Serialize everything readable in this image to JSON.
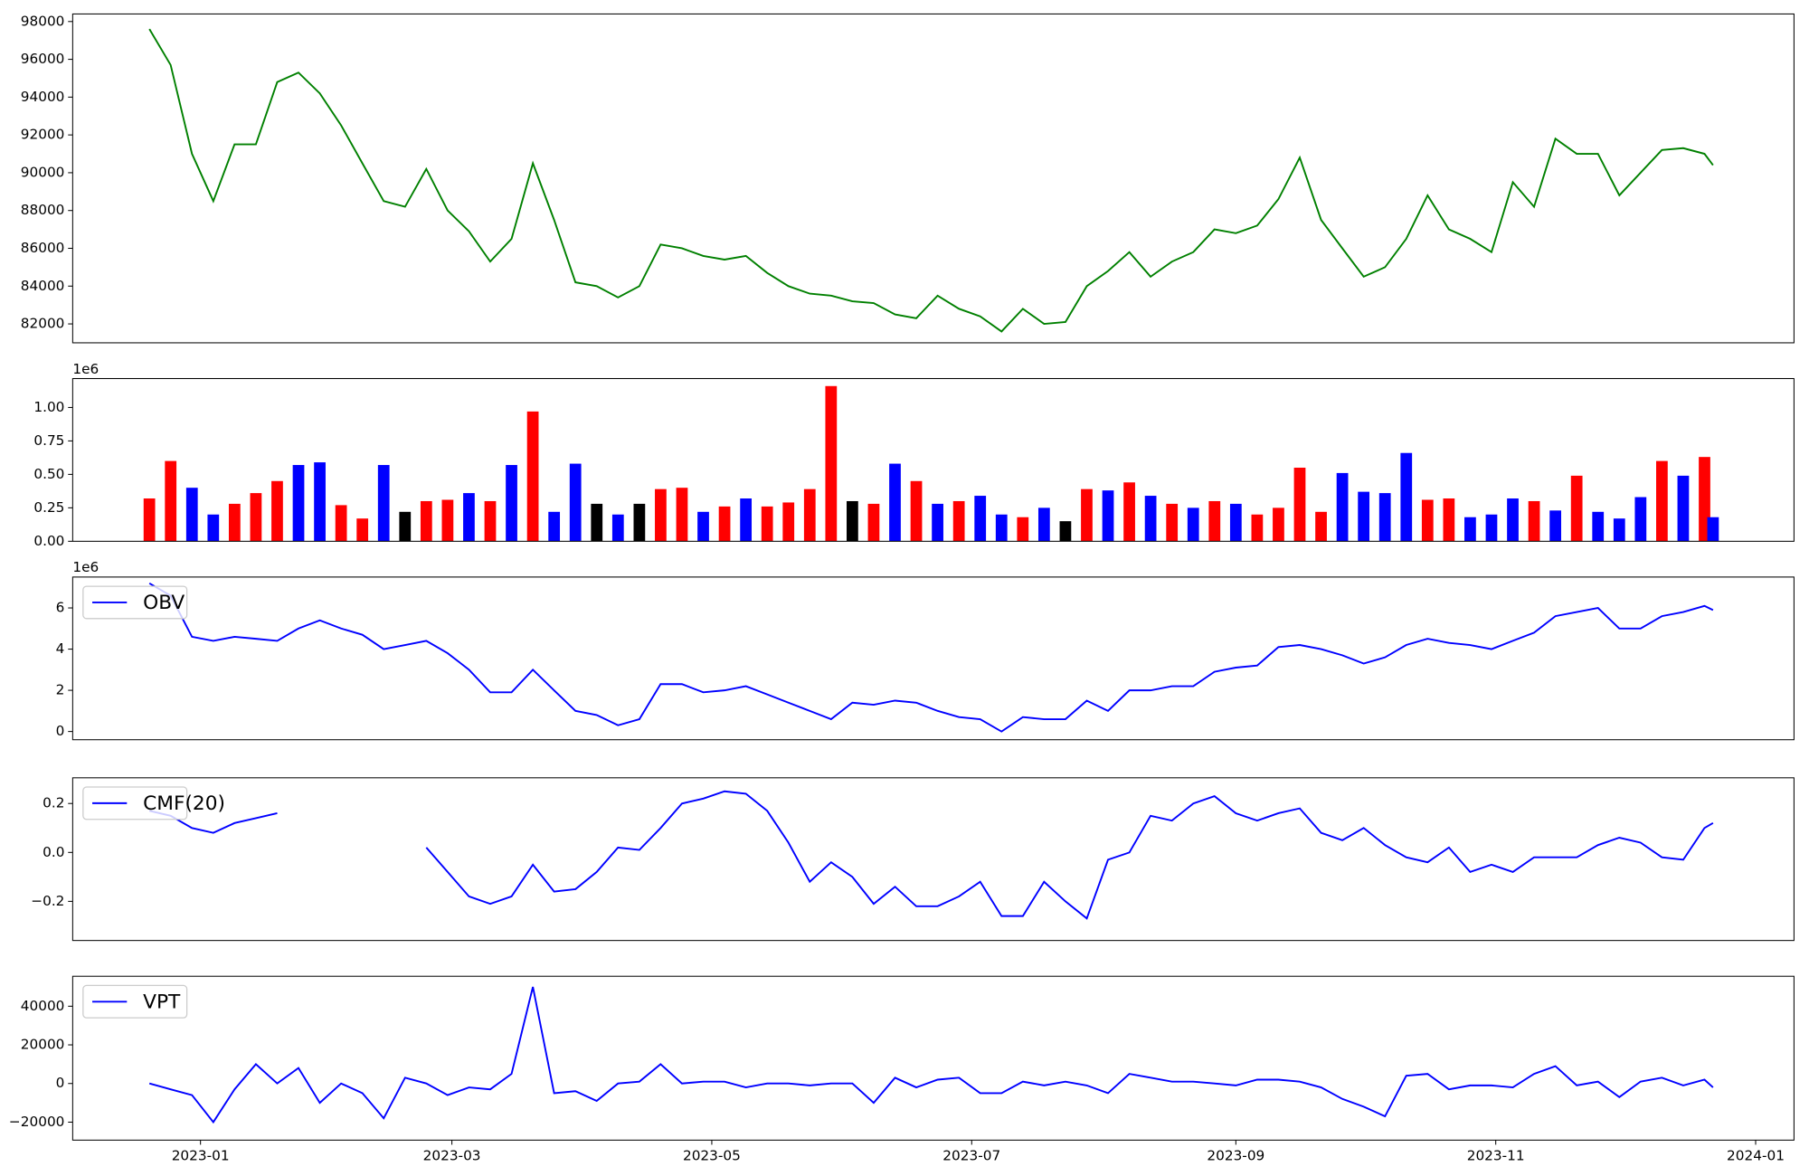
{
  "chart_data": [
    {
      "type": "line",
      "xlim": [
        1,
        405
      ],
      "ylim": [
        81000,
        98400
      ],
      "yticks": [
        82000,
        84000,
        86000,
        88000,
        90000,
        92000,
        94000,
        96000,
        98000
      ],
      "x": [
        19,
        24,
        29,
        34,
        39,
        44,
        49,
        54,
        59,
        64,
        69,
        74,
        79,
        84,
        89,
        94,
        99,
        104,
        109,
        114,
        119,
        124,
        129,
        134,
        139,
        144,
        149,
        154,
        159,
        164,
        169,
        174,
        179,
        184,
        189,
        194,
        199,
        204,
        209,
        214,
        219,
        224,
        229,
        234,
        239,
        244,
        249,
        254,
        259,
        264,
        269,
        274,
        279,
        284,
        289,
        294,
        299,
        304,
        309,
        314,
        319,
        324,
        329,
        334,
        339,
        344,
        349,
        354,
        359,
        364,
        369,
        374,
        379,
        384,
        386
      ],
      "series": [
        {
          "color": "#008000",
          "values": [
            97600,
            95700,
            91000,
            88500,
            91500,
            91500,
            94800,
            95300,
            94200,
            92500,
            90500,
            88500,
            88200,
            90200,
            88000,
            86900,
            85300,
            86500,
            90500,
            87500,
            84200,
            84000,
            83400,
            84000,
            86200,
            86000,
            85600,
            85400,
            85600,
            84700,
            84000,
            83600,
            83500,
            83200,
            83100,
            82500,
            82300,
            83500,
            82800,
            82400,
            81600,
            82800,
            82000,
            82100,
            84000,
            84800,
            85800,
            84500,
            85300,
            85800,
            87000,
            86800,
            87200,
            88600,
            90800,
            87500,
            86000,
            84500,
            85000,
            86500,
            88800,
            87000,
            86500,
            85800,
            89500,
            88200,
            91800,
            91000,
            91000,
            88800,
            90000,
            91200,
            91300,
            91000,
            90400
          ]
        }
      ]
    },
    {
      "type": "bar",
      "offset_label": "1e6",
      "xlim": [
        1,
        405
      ],
      "ylim": [
        0,
        1.216
      ],
      "yticks": [
        {
          "value": 0,
          "label": "0.00"
        },
        {
          "value": 0.25,
          "label": "0.25"
        },
        {
          "value": 0.5,
          "label": "0.50"
        },
        {
          "value": 0.75,
          "label": "0.75"
        },
        {
          "value": 1,
          "label": "1.00"
        }
      ],
      "x": [
        19,
        24,
        29,
        34,
        39,
        44,
        49,
        54,
        59,
        64,
        69,
        74,
        79,
        84,
        89,
        94,
        99,
        104,
        109,
        114,
        119,
        124,
        129,
        134,
        139,
        144,
        149,
        154,
        159,
        164,
        169,
        174,
        179,
        184,
        189,
        194,
        199,
        204,
        209,
        214,
        219,
        224,
        229,
        234,
        239,
        244,
        249,
        254,
        259,
        264,
        269,
        274,
        279,
        284,
        289,
        294,
        299,
        304,
        309,
        314,
        319,
        324,
        329,
        334,
        339,
        344,
        349,
        354,
        359,
        364,
        369,
        374,
        379,
        384,
        386
      ],
      "values": [
        0.32,
        0.6,
        0.4,
        0.2,
        0.28,
        0.36,
        0.45,
        0.57,
        0.59,
        0.27,
        0.17,
        0.57,
        0.22,
        0.3,
        0.31,
        0.36,
        0.3,
        0.57,
        0.97,
        0.22,
        0.58,
        0.28,
        0.2,
        0.28,
        0.39,
        0.4,
        0.22,
        0.26,
        0.32,
        0.26,
        0.29,
        0.39,
        1.16,
        0.3,
        0.28,
        0.58,
        0.45,
        0.28,
        0.3,
        0.34,
        0.2,
        0.18,
        0.25,
        0.15,
        0.39,
        0.38,
        0.44,
        0.34,
        0.28,
        0.25,
        0.3,
        0.28,
        0.2,
        0.25,
        0.55,
        0.22,
        0.51,
        0.37,
        0.36,
        0.66,
        0.31,
        0.32,
        0.18,
        0.2,
        0.32,
        0.3,
        0.23,
        0.49,
        0.22,
        0.17,
        0.33,
        0.6,
        0.49,
        0.63,
        0.18
      ],
      "colors": [
        "red",
        "red",
        "blue",
        "blue",
        "red",
        "red",
        "red",
        "blue",
        "blue",
        "red",
        "red",
        "blue",
        "black",
        "red",
        "red",
        "blue",
        "red",
        "blue",
        "red",
        "blue",
        "blue",
        "black",
        "blue",
        "black",
        "red",
        "red",
        "blue",
        "red",
        "blue",
        "red",
        "red",
        "red",
        "red",
        "black",
        "red",
        "blue",
        "red",
        "blue",
        "red",
        "blue",
        "blue",
        "red",
        "blue",
        "black",
        "red",
        "blue",
        "red",
        "blue",
        "red",
        "blue",
        "red",
        "blue",
        "red",
        "red",
        "red",
        "red",
        "blue",
        "blue",
        "blue",
        "blue",
        "red",
        "red",
        "blue",
        "blue",
        "blue",
        "red",
        "blue",
        "red",
        "blue",
        "blue",
        "blue",
        "red",
        "blue",
        "red",
        "blue"
      ]
    },
    {
      "type": "line",
      "offset_label": "1e6",
      "xlim": [
        1,
        405
      ],
      "ylim": [
        -0.4,
        7.5
      ],
      "yticks": [
        0,
        2,
        4,
        6
      ],
      "x": [
        19,
        24,
        29,
        34,
        39,
        44,
        49,
        54,
        59,
        64,
        69,
        74,
        79,
        84,
        89,
        94,
        99,
        104,
        109,
        114,
        119,
        124,
        129,
        134,
        139,
        144,
        149,
        154,
        159,
        164,
        169,
        174,
        179,
        184,
        189,
        194,
        199,
        204,
        209,
        214,
        219,
        224,
        229,
        234,
        239,
        244,
        249,
        254,
        259,
        264,
        269,
        274,
        279,
        284,
        289,
        294,
        299,
        304,
        309,
        314,
        319,
        324,
        329,
        334,
        339,
        344,
        349,
        354,
        359,
        364,
        369,
        374,
        379,
        384,
        386
      ],
      "series": [
        {
          "name": "OBV",
          "color": "#0000ff",
          "values": [
            7.2,
            6.6,
            4.6,
            4.4,
            4.6,
            4.5,
            4.4,
            5.0,
            5.4,
            5.0,
            4.7,
            4.0,
            4.2,
            4.4,
            3.8,
            3.0,
            1.9,
            1.9,
            3.0,
            2.0,
            1.0,
            0.8,
            0.3,
            0.6,
            2.3,
            2.3,
            1.9,
            2.0,
            2.2,
            1.8,
            1.4,
            1.0,
            0.6,
            1.4,
            1.3,
            1.5,
            1.4,
            1.0,
            0.7,
            0.6,
            0.0,
            0.7,
            0.6,
            0.6,
            1.5,
            1.0,
            2.0,
            2.0,
            2.2,
            2.2,
            2.9,
            3.1,
            3.2,
            4.1,
            4.2,
            4.0,
            3.7,
            3.3,
            3.6,
            4.2,
            4.5,
            4.3,
            4.2,
            4.0,
            4.4,
            4.8,
            5.6,
            5.8,
            6.0,
            5.0,
            5.0,
            5.6,
            5.8,
            6.1,
            5.9
          ]
        }
      ]
    },
    {
      "type": "line",
      "xlim": [
        1,
        405
      ],
      "ylim": [
        -0.36,
        0.305
      ],
      "yticks": [
        {
          "value": -0.2,
          "label": "−0.2"
        },
        {
          "value": 0,
          "label": "0.0"
        },
        {
          "value": 0.2,
          "label": "0.2"
        }
      ],
      "x": [
        19,
        24,
        29,
        34,
        39,
        44,
        49,
        54,
        59,
        64,
        69,
        74,
        79,
        84,
        89,
        94,
        99,
        104,
        109,
        114,
        119,
        124,
        129,
        134,
        139,
        144,
        149,
        154,
        159,
        164,
        169,
        174,
        179,
        184,
        189,
        194,
        199,
        204,
        209,
        214,
        219,
        224,
        229,
        234,
        239,
        244,
        249,
        254,
        259,
        264,
        269,
        274,
        279,
        284,
        289,
        294,
        299,
        304,
        309,
        314,
        319,
        324,
        329,
        334,
        339,
        344,
        349,
        354,
        359,
        364,
        369,
        374,
        379,
        384,
        386
      ],
      "series": [
        {
          "name": "CMF(20)",
          "color": "#0000ff",
          "values": [
            0.17,
            0.15,
            0.1,
            0.08,
            0.12,
            0.14,
            0.16,
            null,
            null,
            null,
            null,
            null,
            null,
            0.02,
            -0.08,
            -0.18,
            -0.21,
            -0.18,
            -0.05,
            -0.16,
            -0.15,
            -0.08,
            0.02,
            0.01,
            0.1,
            0.2,
            0.22,
            0.25,
            0.24,
            0.17,
            0.04,
            -0.12,
            -0.04,
            -0.1,
            -0.21,
            -0.14,
            -0.22,
            -0.22,
            -0.18,
            -0.12,
            -0.26,
            -0.26,
            -0.12,
            -0.2,
            -0.27,
            -0.03,
            0.0,
            0.15,
            0.13,
            0.2,
            0.23,
            0.16,
            0.13,
            0.16,
            0.18,
            0.08,
            0.05,
            0.1,
            0.03,
            -0.02,
            -0.04,
            0.02,
            -0.08,
            -0.05,
            -0.08,
            -0.02,
            -0.02,
            -0.02,
            0.03,
            0.06,
            0.04,
            -0.02,
            -0.03,
            0.1,
            0.12
          ]
        }
      ]
    },
    {
      "type": "line",
      "xlim": [
        1,
        405
      ],
      "ylim": [
        -29300,
        55500
      ],
      "yticks": [
        {
          "value": -20000,
          "label": "−20000"
        },
        0,
        20000,
        40000
      ],
      "xticks": [
        {
          "value": 31,
          "label": "2023-01"
        },
        {
          "value": 90,
          "label": "2023-03"
        },
        {
          "value": 151,
          "label": "2023-05"
        },
        {
          "value": 212,
          "label": "2023-07"
        },
        {
          "value": 274,
          "label": "2023-09"
        },
        {
          "value": 335,
          "label": "2023-11"
        },
        {
          "value": 396,
          "label": "2024-01"
        }
      ],
      "x": [
        19,
        24,
        29,
        34,
        39,
        44,
        49,
        54,
        59,
        64,
        69,
        74,
        79,
        84,
        89,
        94,
        99,
        104,
        109,
        114,
        119,
        124,
        129,
        134,
        139,
        144,
        149,
        154,
        159,
        164,
        169,
        174,
        179,
        184,
        189,
        194,
        199,
        204,
        209,
        214,
        219,
        224,
        229,
        234,
        239,
        244,
        249,
        254,
        259,
        264,
        269,
        274,
        279,
        284,
        289,
        294,
        299,
        304,
        309,
        314,
        319,
        324,
        329,
        334,
        339,
        344,
        349,
        354,
        359,
        364,
        369,
        374,
        379,
        384,
        386
      ],
      "series": [
        {
          "name": "VPT",
          "color": "#0000ff",
          "values": [
            0,
            -3000,
            -6000,
            -20000,
            -3000,
            10000,
            0,
            8000,
            -10000,
            0,
            -5000,
            -18000,
            3000,
            0,
            -6000,
            -2000,
            -3000,
            5000,
            50000,
            -5000,
            -4000,
            -9000,
            0,
            1000,
            10000,
            0,
            1000,
            1000,
            -2000,
            0,
            0,
            -1000,
            0,
            0,
            -10000,
            3000,
            -2000,
            2000,
            3000,
            -5000,
            -5000,
            1000,
            -1000,
            1000,
            -1000,
            -5000,
            5000,
            3000,
            1000,
            1000,
            0,
            -1000,
            2000,
            2000,
            1000,
            -2000,
            -8000,
            -12000,
            -17000,
            4000,
            5000,
            -3000,
            -1000,
            -1000,
            -2000,
            5000,
            9000,
            -1000,
            1000,
            -7000,
            1000,
            3000,
            -1000,
            2000,
            -2000
          ]
        }
      ]
    }
  ]
}
